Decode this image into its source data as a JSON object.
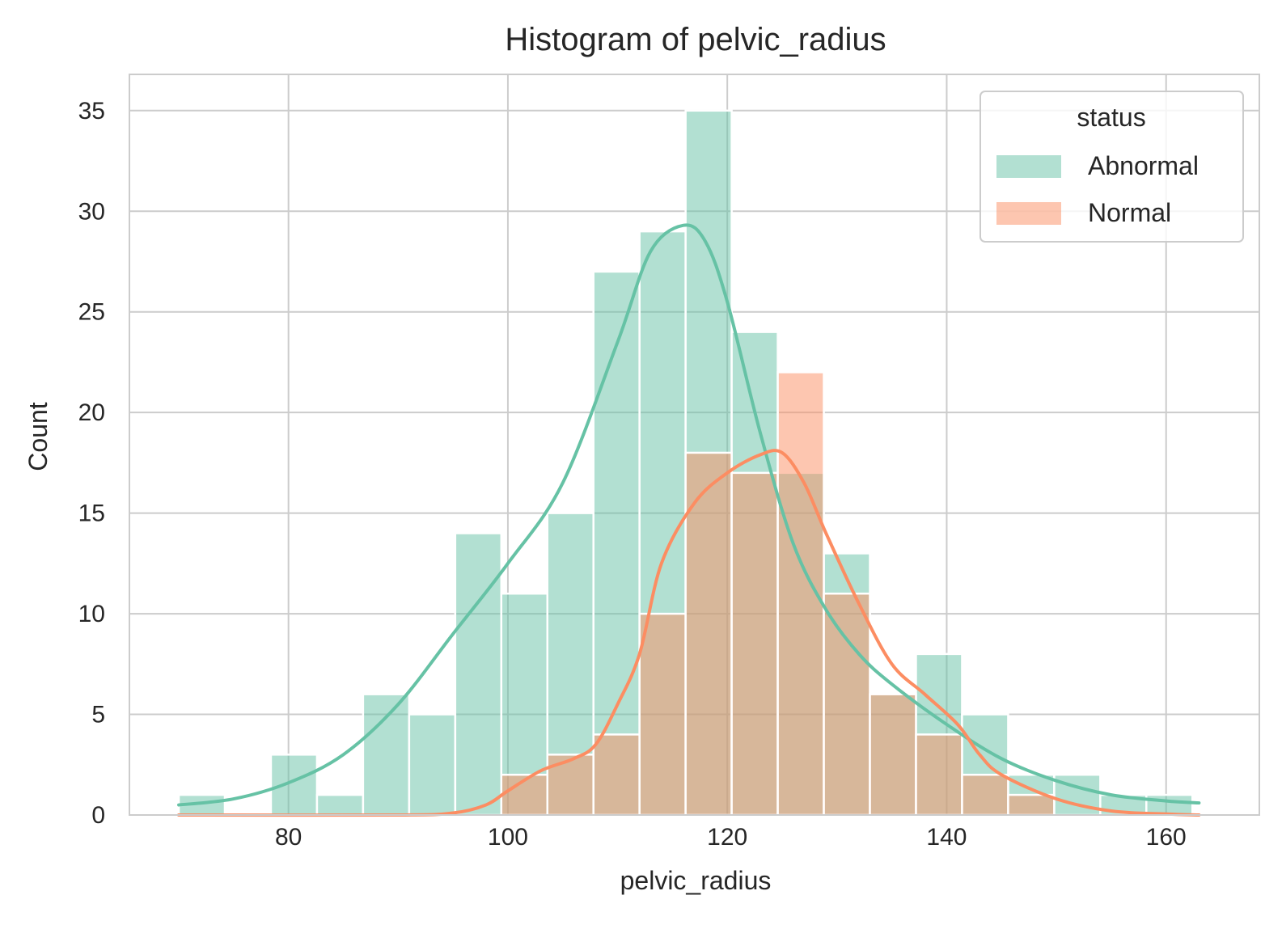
{
  "chart_data": {
    "type": "bar",
    "title": "Histogram of pelvic_radius",
    "xlabel": "pelvic_radius",
    "ylabel": "Count",
    "xlim": [
      65.5,
      168.5
    ],
    "ylim": [
      0,
      36.8
    ],
    "xticks": [
      80,
      100,
      120,
      140,
      160
    ],
    "yticks": [
      0,
      5,
      10,
      15,
      20,
      25,
      30,
      35
    ],
    "grid": true,
    "legend": {
      "title": "status",
      "placement": "top-right"
    },
    "bin_edges": [
      70.0,
      74.2,
      78.4,
      82.6,
      86.8,
      91.0,
      95.2,
      99.4,
      103.6,
      107.8,
      112.0,
      116.2,
      120.4,
      124.6,
      128.8,
      133.0,
      137.2,
      141.4,
      145.6,
      149.8,
      154.0,
      158.2,
      162.4
    ],
    "series": [
      {
        "name": "Abnormal",
        "color": "#66c2a5",
        "counts": [
          1,
          0,
          3,
          1,
          6,
          5,
          14,
          11,
          15,
          27,
          29,
          35,
          24,
          17,
          13,
          6,
          8,
          5,
          2,
          2,
          1,
          1
        ],
        "kde": [
          [
            70,
            0.5
          ],
          [
            75,
            0.8
          ],
          [
            80,
            1.6
          ],
          [
            85,
            3.0
          ],
          [
            90,
            5.5
          ],
          [
            95,
            9.0
          ],
          [
            100,
            12.5
          ],
          [
            105,
            16.5
          ],
          [
            110,
            23.5
          ],
          [
            113,
            28.0
          ],
          [
            116,
            29.3
          ],
          [
            118,
            28.5
          ],
          [
            120,
            25.5
          ],
          [
            123,
            19.0
          ],
          [
            126,
            13.5
          ],
          [
            129,
            10.2
          ],
          [
            132,
            8.0
          ],
          [
            135,
            6.5
          ],
          [
            140,
            4.5
          ],
          [
            145,
            2.8
          ],
          [
            150,
            1.7
          ],
          [
            155,
            1.0
          ],
          [
            160,
            0.7
          ],
          [
            163,
            0.6
          ]
        ]
      },
      {
        "name": "Normal",
        "color": "#fc8d62",
        "counts": [
          0,
          0,
          0,
          0,
          0,
          0,
          0,
          2,
          3,
          4,
          10,
          18,
          17,
          22,
          11,
          6,
          4,
          2,
          1,
          0,
          0,
          0
        ],
        "kde": [
          [
            70,
            0
          ],
          [
            90,
            0
          ],
          [
            95,
            0.1
          ],
          [
            98,
            0.5
          ],
          [
            100,
            1.2
          ],
          [
            103,
            2.2
          ],
          [
            106,
            2.8
          ],
          [
            108,
            3.5
          ],
          [
            110,
            5.5
          ],
          [
            112,
            8.0
          ],
          [
            114,
            12.5
          ],
          [
            117,
            15.5
          ],
          [
            120,
            17.0
          ],
          [
            123,
            17.9
          ],
          [
            125,
            18.0
          ],
          [
            127,
            16.5
          ],
          [
            129,
            14.0
          ],
          [
            132,
            10.5
          ],
          [
            135,
            7.5
          ],
          [
            138,
            6.0
          ],
          [
            141,
            4.5
          ],
          [
            143,
            3.0
          ],
          [
            145,
            2.0
          ],
          [
            150,
            0.8
          ],
          [
            155,
            0.2
          ],
          [
            160,
            0.05
          ],
          [
            163,
            0
          ]
        ]
      }
    ]
  }
}
